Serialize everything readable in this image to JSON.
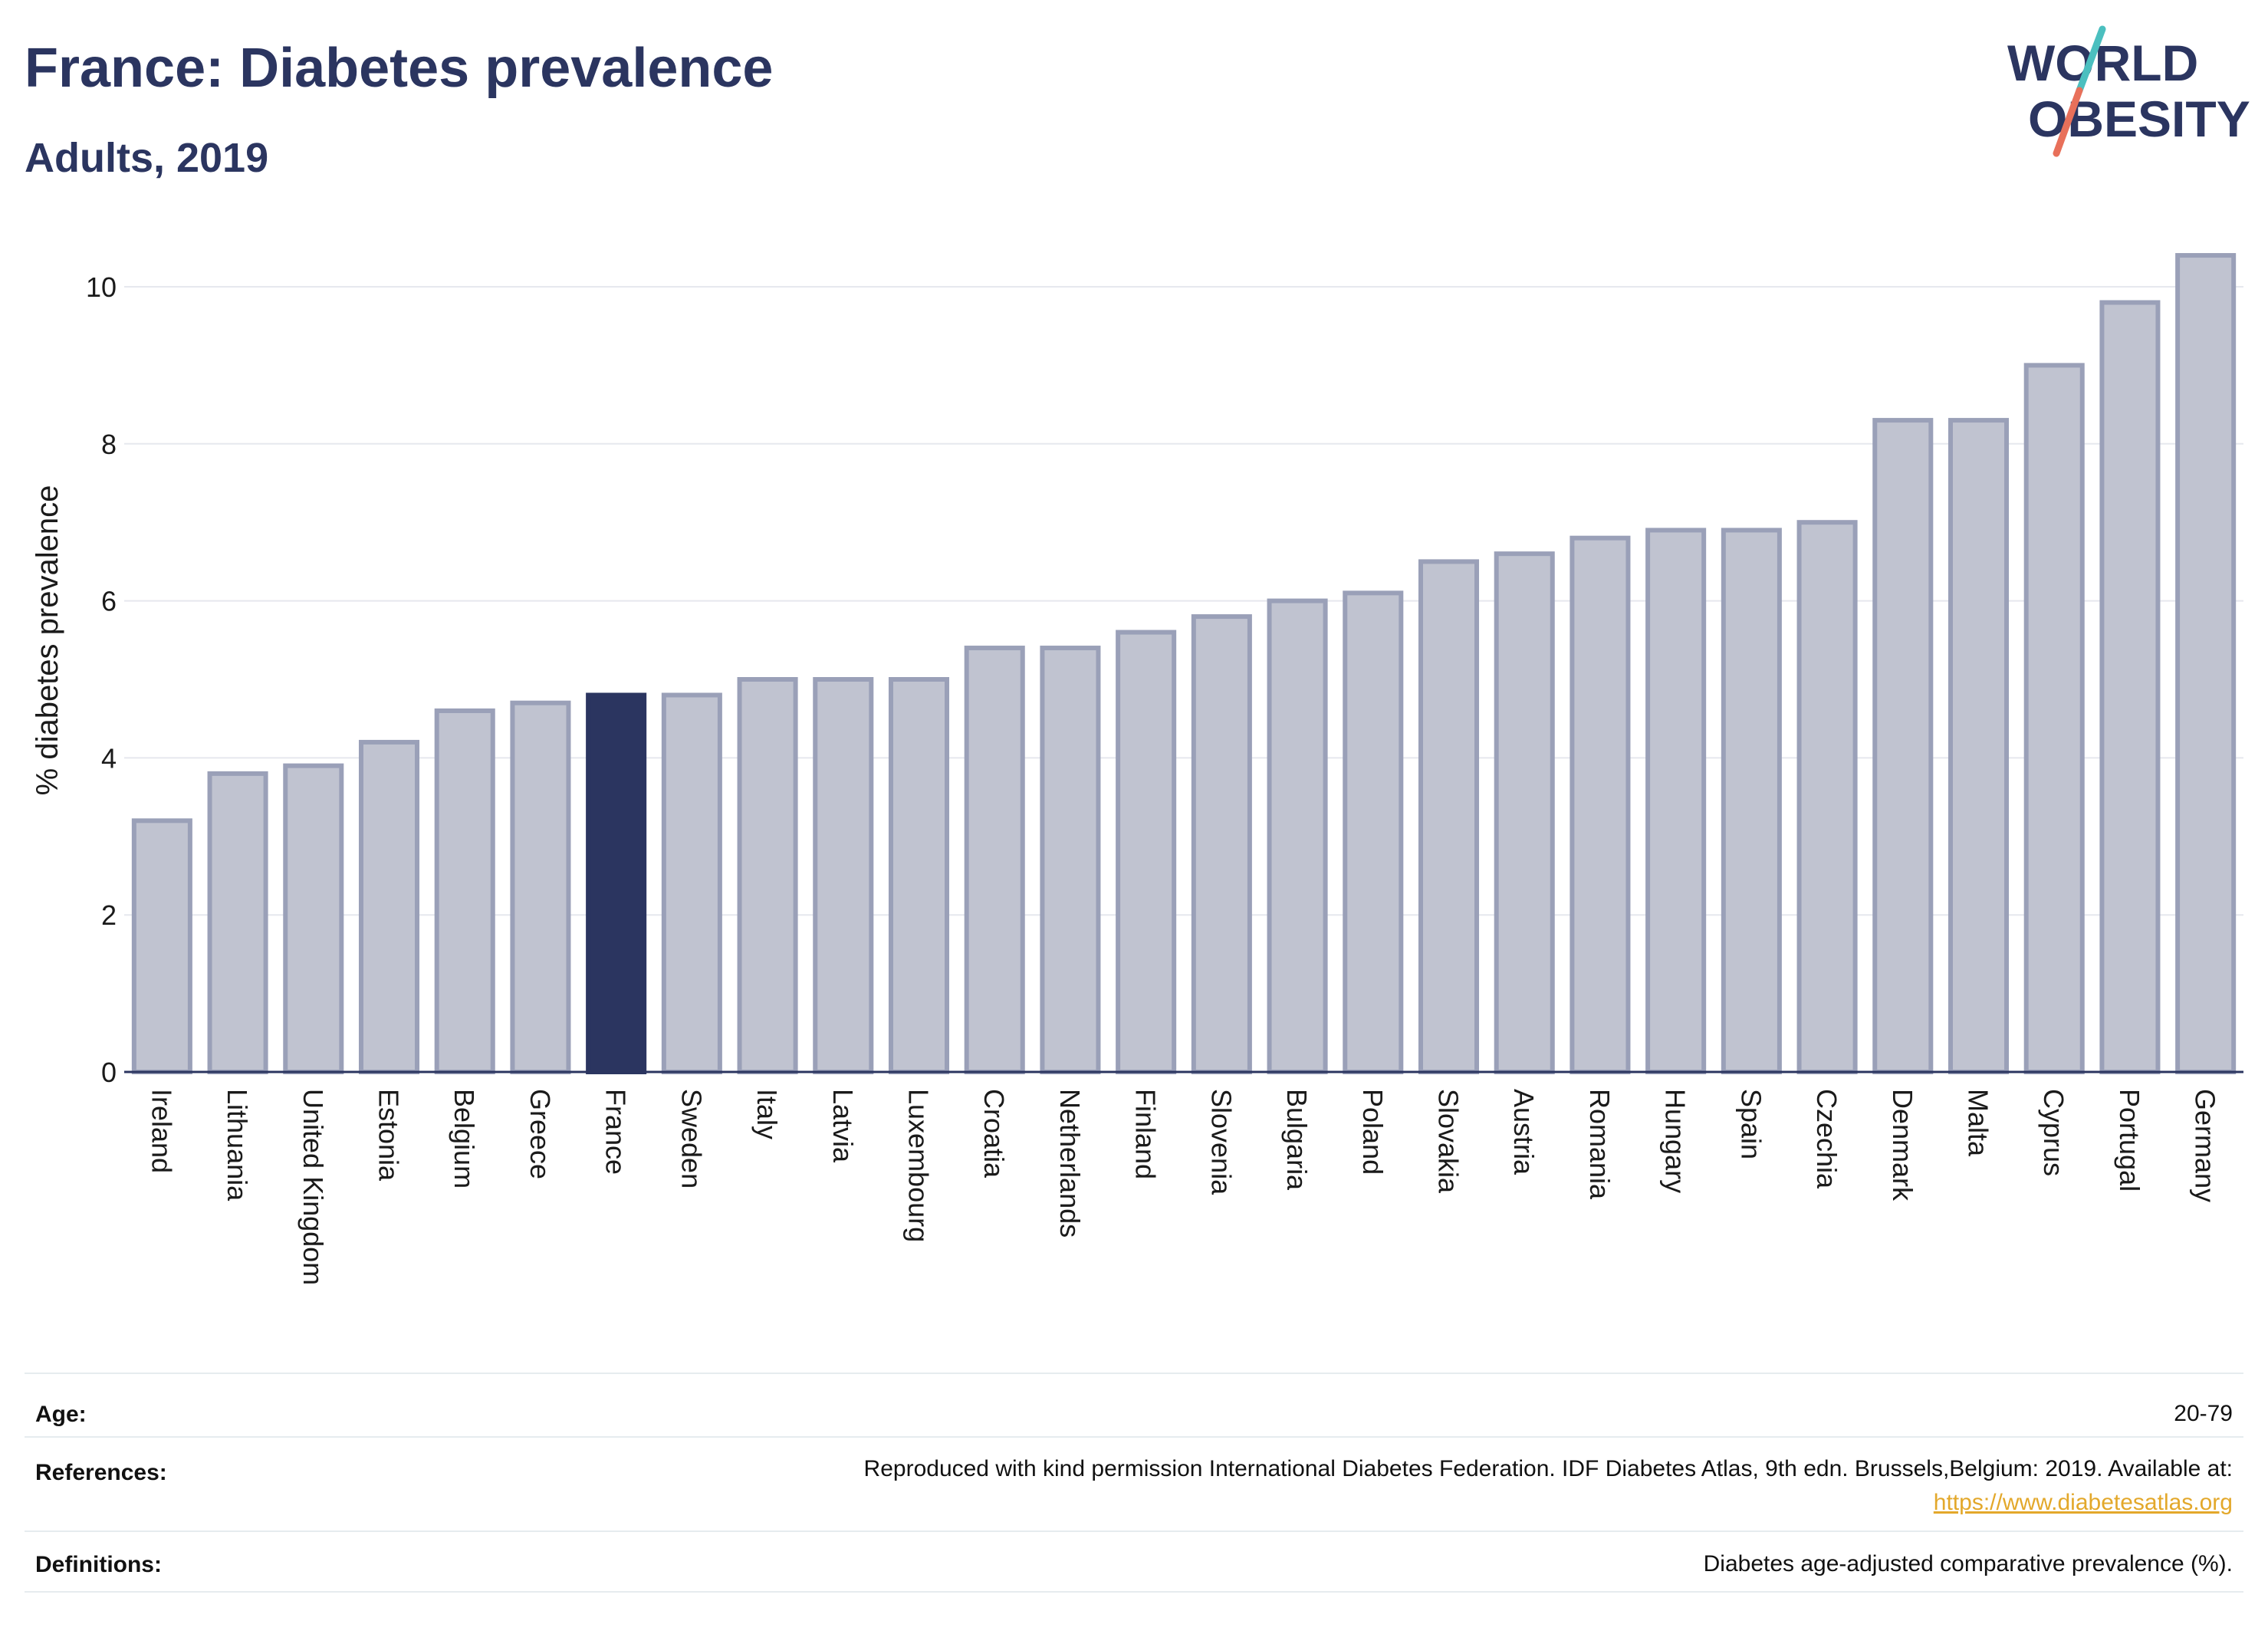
{
  "header": {
    "title": "France: Diabetes prevalence",
    "subtitle": "Adults, 2019"
  },
  "logo": {
    "line1": "WORLD",
    "line2": "OBESITY",
    "colors": {
      "text": "#2b3560",
      "slash_top": "#4bbfbf",
      "slash_bottom": "#e8705a"
    }
  },
  "colors": {
    "highlight": "#2b3560",
    "bar_fill": "#c0c3d0",
    "bar_stroke": "#9aa0b8",
    "grid": "#e6e8ee"
  },
  "chart_data": {
    "type": "bar",
    "ylabel": "% diabetes prevalence",
    "xlabel": "",
    "ylim": [
      0,
      10.6
    ],
    "yticks": [
      0,
      2,
      4,
      6,
      8,
      10
    ],
    "grid": true,
    "highlight": "France",
    "categories": [
      "Ireland",
      "Lithuania",
      "United Kingdom",
      "Estonia",
      "Belgium",
      "Greece",
      "France",
      "Sweden",
      "Italy",
      "Latvia",
      "Luxembourg",
      "Croatia",
      "Netherlands",
      "Finland",
      "Slovenia",
      "Bulgaria",
      "Poland",
      "Slovakia",
      "Austria",
      "Romania",
      "Hungary",
      "Spain",
      "Czechia",
      "Denmark",
      "Malta",
      "Cyprus",
      "Portugal",
      "Germany"
    ],
    "values": [
      3.2,
      3.8,
      3.9,
      4.2,
      4.6,
      4.7,
      4.8,
      4.8,
      5.0,
      5.0,
      5.0,
      5.4,
      5.4,
      5.6,
      5.8,
      6.0,
      6.1,
      6.5,
      6.6,
      6.8,
      6.9,
      6.9,
      7.0,
      8.3,
      8.3,
      9.0,
      9.8,
      10.4
    ]
  },
  "footer": {
    "age_label": "Age:",
    "age_value": "20-79",
    "references_label": "References:",
    "references_text": "Reproduced with kind permission International Diabetes Federation. IDF Diabetes Atlas, 9th edn. Brussels,Belgium: 2019. Available at:",
    "references_link": "https://www.diabetesatlas.org",
    "definitions_label": "Definitions:",
    "definitions_text": "Diabetes age-adjusted comparative prevalence (%)."
  }
}
